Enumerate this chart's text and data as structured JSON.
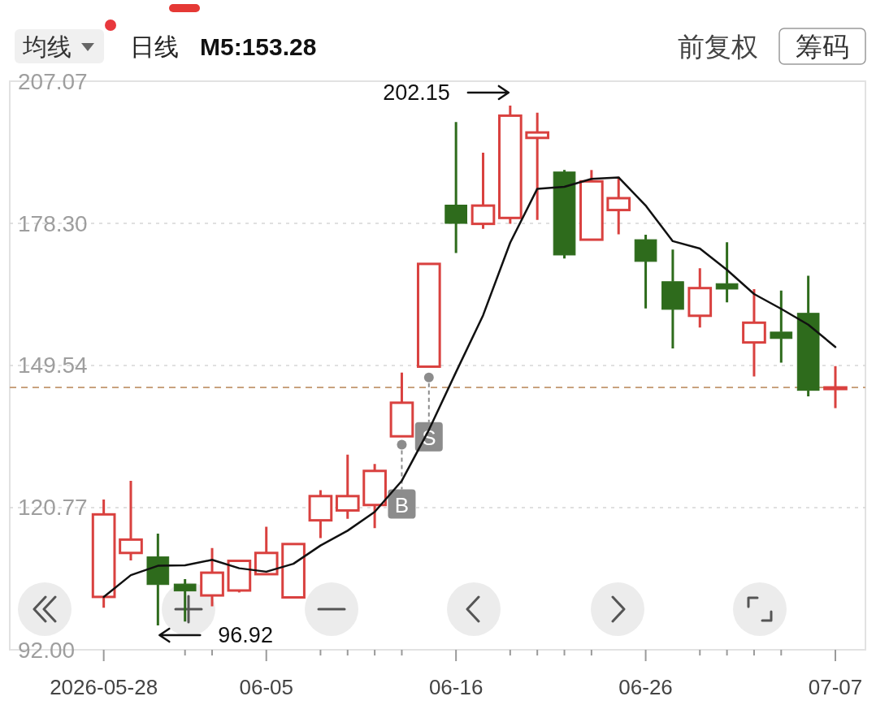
{
  "chart_data": {
    "type": "candlestick",
    "categories": [
      "2026-05-28",
      null,
      null,
      null,
      null,
      null,
      "06-05",
      null,
      null,
      null,
      null,
      null,
      null,
      "06-16",
      null,
      null,
      null,
      null,
      null,
      null,
      "06-26",
      null,
      null,
      null,
      null,
      null,
      null,
      "07-07"
    ],
    "ohlc": [
      [
        102.7,
        122.4,
        100.5,
        119.4
      ],
      [
        111.6,
        126.2,
        110.1,
        114.3
      ],
      [
        110.8,
        115.5,
        96.92,
        105.2
      ],
      [
        105.3,
        106.3,
        97.7,
        103.9
      ],
      [
        103.0,
        112.6,
        100.8,
        107.6
      ],
      [
        104.0,
        110.0,
        103.6,
        110.0
      ],
      [
        107.3,
        116.9,
        107.3,
        111.6
      ],
      [
        102.6,
        113.4,
        102.6,
        113.4
      ],
      [
        118.2,
        124.3,
        114.6,
        123.1
      ],
      [
        120.2,
        131.5,
        118.5,
        123.1
      ],
      [
        121.3,
        129.6,
        116.6,
        128.2
      ],
      [
        135.2,
        148.1,
        135.2,
        142.0
      ],
      [
        149.3,
        170.1,
        149.3,
        170.1
      ],
      [
        182.0,
        198.8,
        172.3,
        178.3
      ],
      [
        178.2,
        192.6,
        177.2,
        181.9
      ],
      [
        179.4,
        202.15,
        178.2,
        200.1
      ],
      [
        195.6,
        200.7,
        179.0,
        196.7
      ],
      [
        188.7,
        189.1,
        171.2,
        171.9
      ],
      [
        175.0,
        189.1,
        175.0,
        186.8
      ],
      [
        181.0,
        187.7,
        176.1,
        183.4
      ],
      [
        175.0,
        176.0,
        161.1,
        170.6
      ],
      [
        166.5,
        173.0,
        153.0,
        160.9
      ],
      [
        159.6,
        169.2,
        157.2,
        165.2
      ],
      [
        166.1,
        174.5,
        162.3,
        165.0
      ],
      [
        154.2,
        165.0,
        147.3,
        158.2
      ],
      [
        156.3,
        164.7,
        150.1,
        155.0
      ],
      [
        160.1,
        167.7,
        143.3,
        144.5
      ],
      [
        145.0,
        149.4,
        140.9,
        145.1
      ]
    ],
    "colors": [
      "#d9413f",
      "#d9413f",
      "#2e6b1c",
      "#2e6b1c",
      "#d9413f",
      "#d9413f",
      "#d9413f",
      "#d9413f",
      "#d9413f",
      "#d9413f",
      "#d9413f",
      "#d9413f",
      "#d9413f",
      "#2e6b1c",
      "#d9413f",
      "#d9413f",
      "#d9413f",
      "#2e6b1c",
      "#d9413f",
      "#d9413f",
      "#2e6b1c",
      "#2e6b1c",
      "#d9413f",
      "#2e6b1c",
      "#d9413f",
      "#2e6b1c",
      "#2e6b1c",
      "#d9413f"
    ],
    "series": [
      {
        "name": "M5:153.28",
        "type": "line",
        "color": "#111111",
        "values": [
          102.7,
          107.1,
          109.0,
          109.1,
          110.2,
          108.5,
          107.8,
          109.4,
          113.1,
          116.1,
          119.9,
          126.2,
          136.5,
          148.2,
          159.7,
          174.4,
          185.3,
          185.7,
          187.3,
          187.6,
          181.9,
          174.7,
          173.2,
          168.9,
          164.0,
          161.0,
          157.8,
          153.28
        ]
      },
      {
        "type": "scatter",
        "color": "#8c8c8c",
        "marker": "circle",
        "values": [
          null,
          null,
          null,
          null,
          null,
          null,
          null,
          null,
          null,
          null,
          null,
          133.5,
          147.1,
          null,
          null,
          null,
          null,
          null,
          null,
          null,
          null,
          null,
          null,
          null,
          null,
          null,
          null,
          null
        ],
        "value_labels": [
          null,
          null,
          null,
          null,
          null,
          null,
          null,
          null,
          null,
          null,
          null,
          "B",
          "S",
          null,
          null,
          null,
          null,
          null,
          null,
          null,
          null,
          null,
          null,
          null,
          null,
          null,
          null,
          null
        ]
      }
    ],
    "ylim": [
      92.0,
      207.07
    ],
    "yticks": [
      {
        "value": 92,
        "label": "92.00"
      },
      120.77,
      149.54,
      {
        "value": 178.3,
        "label": "178.30"
      },
      207.07
    ],
    "grid": "y",
    "legend": "top left",
    "ref_lines": [
      {
        "axis": "y",
        "value": 145.1,
        "color": "#c9a27e",
        "line_style": "dashed"
      }
    ],
    "annotations": [
      "均线",
      "日线",
      "前复权",
      "筹码",
      "202.15",
      "96.92"
    ]
  }
}
